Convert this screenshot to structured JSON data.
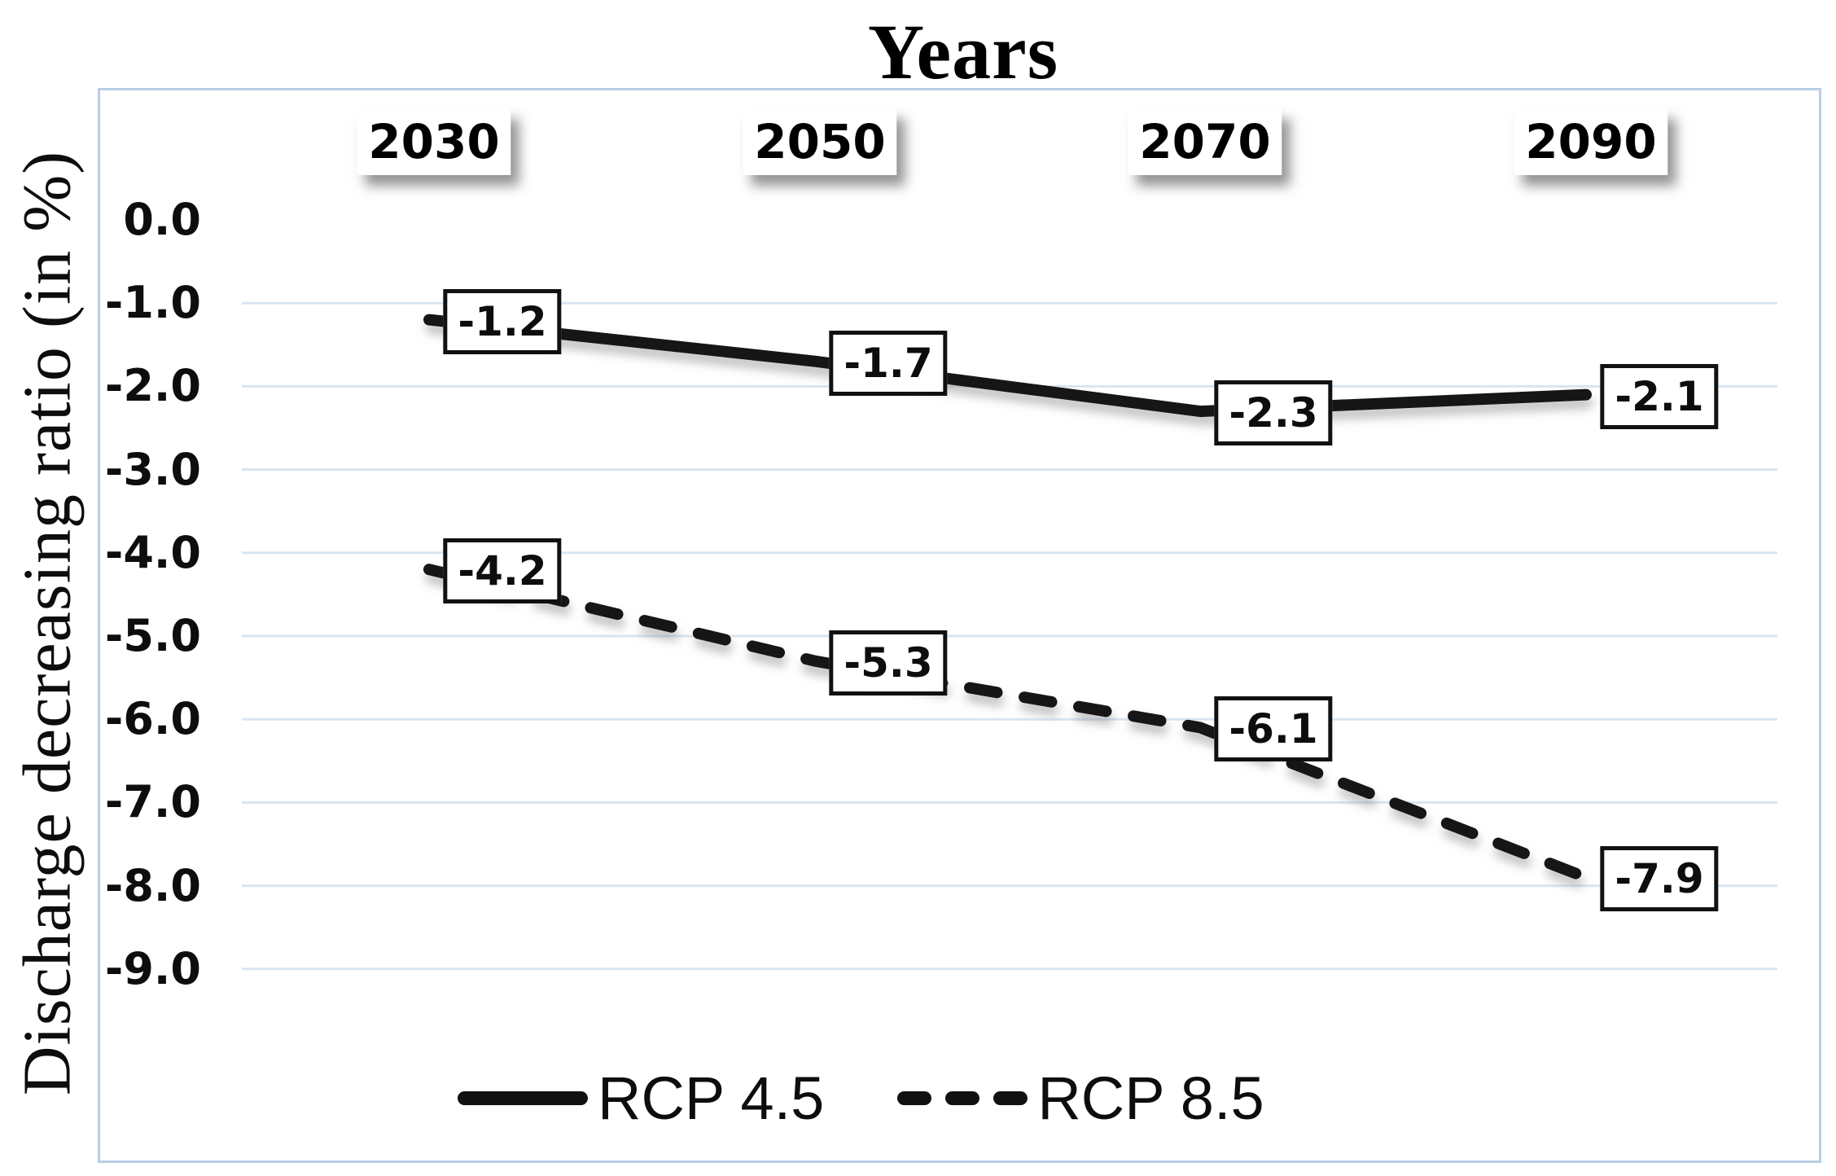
{
  "chart_data": {
    "type": "line",
    "title": "Years",
    "xlabel": "Years",
    "ylabel": "Discharge decreasing ratio (in %)",
    "categories": [
      "2030",
      "2050",
      "2070",
      "2090"
    ],
    "series": [
      {
        "name": "RCP 4.5",
        "style": "solid",
        "values": [
          -1.2,
          -1.7,
          -2.3,
          -2.1
        ],
        "labels": [
          "-1.2",
          "-1.7",
          "-2.3",
          "-2.1"
        ]
      },
      {
        "name": "RCP 8.5",
        "style": "dashed",
        "values": [
          -4.2,
          -5.3,
          -6.1,
          -7.9
        ],
        "labels": [
          "-4.2",
          "-5.3",
          "-6.1",
          "-7.9"
        ]
      }
    ],
    "y_ticks": [
      "0.0",
      "-1.0",
      "-2.0",
      "-3.0",
      "-4.0",
      "-5.0",
      "-6.0",
      "-7.0",
      "-8.0",
      "-9.0"
    ],
    "ylim": [
      -9,
      0
    ],
    "grid": true,
    "legend_position": "bottom",
    "colors": {
      "line": "#131313",
      "grid": "#d9e5f2",
      "frame_border": "#b9cfe8",
      "zero_line": "#161616",
      "label_box_bg": "#ffffff",
      "label_box_border": "#111111",
      "text": "#0d0d0d"
    }
  }
}
